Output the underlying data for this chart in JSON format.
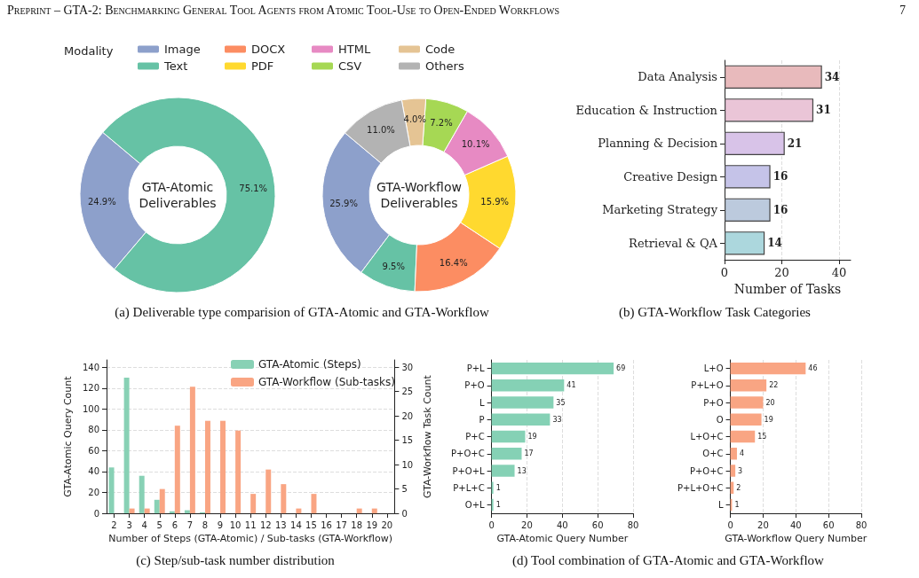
{
  "chart_data": [
    {
      "type": "donut",
      "categories": [
        "Image",
        "Text",
        "DOCX",
        "PDF",
        "HTML",
        "CSV",
        "Code",
        "Others"
      ],
      "colors": [
        "#8da0cb",
        "#66c2a5",
        "#fc8d62",
        "#ffd92f",
        "#e78ac3",
        "#a6d854",
        "#e5c494",
        "#b3b3b3"
      ],
      "series": [
        {
          "name": "GTA-Atomic\nDeliverables",
          "values": [
            24.9,
            75.1,
            null,
            null,
            null,
            null,
            null,
            null
          ],
          "value_labels": [
            "24.9%",
            "75.1%",
            null,
            null,
            null,
            null,
            null,
            null
          ]
        },
        {
          "name": "GTA-Workflow\nDeliverables",
          "values": [
            25.9,
            9.5,
            16.4,
            15.9,
            10.1,
            7.2,
            4.0,
            11.0
          ],
          "value_labels": [
            "25.9%",
            "9.5%",
            "16.4%",
            "15.9%",
            "10.1%",
            "7.2%",
            "4.0%",
            "11.0%"
          ]
        }
      ],
      "legend": "top",
      "legend_title": "Modality",
      "annotations": [
        "Preprint – GTA-2: Benchmarking General Tool Agents from Atomic Tool-Use to Open-Ended Workflows",
        "7",
        "(a) Deliverable type comparision of GTA-Atomic and GTA-Workflow"
      ]
    },
    {
      "type": "bar",
      "orientation": "horizontal",
      "categories": [
        "Data Analysis",
        "Education & Instruction",
        "Planning & Decision",
        "Creative Design",
        "Marketing Strategy",
        "Retrieval & QA"
      ],
      "values": [
        34,
        31,
        21,
        16,
        16,
        14
      ],
      "colors": [
        "#e8babc",
        "#eac5d7",
        "#d8c3e8",
        "#c5c3e8",
        "#bccadd",
        "#acd7dd"
      ],
      "data_labels": true,
      "xlabel": "Number of Tasks",
      "xlim": [
        0,
        44
      ],
      "xticks": [
        0,
        20,
        40
      ],
      "grid": "x",
      "annotations": [
        "(b) GTA-Workflow Task Categories"
      ]
    },
    {
      "type": "bar",
      "categories": [
        "2",
        "3",
        "4",
        "5",
        "6",
        "7",
        "8",
        "9",
        "10",
        "11",
        "12",
        "13",
        "14",
        "15",
        "16",
        "17",
        "18",
        "19",
        "20"
      ],
      "series": [
        {
          "name": "GTA-Atomic (Steps)",
          "color": "#88d1b5",
          "values": [
            44,
            130,
            36,
            13,
            2,
            3,
            1,
            null,
            null,
            null,
            null,
            null,
            null,
            null,
            null,
            null,
            null,
            null,
            null
          ]
        },
        {
          "name": "GTA-Workflow (Sub-tasks)",
          "color": "#f9a583",
          "axis": "y2",
          "values": [
            null,
            1,
            1,
            5,
            18,
            26,
            19,
            19,
            17,
            4,
            9,
            6,
            1,
            4,
            null,
            null,
            1,
            1,
            null
          ]
        }
      ],
      "xlabel": "Number of Steps (GTA-Atomic) / Sub-tasks (GTA-Workflow)",
      "ylabel": "GTA-Atomic Query Count",
      "y2label": "GTA-Workflow Task Count",
      "ylim": [
        0,
        147
      ],
      "yticks": [
        0,
        20,
        40,
        60,
        80,
        100,
        120,
        140
      ],
      "y2lim": [
        0,
        31.5
      ],
      "y2ticks": [
        0,
        5,
        10,
        15,
        20,
        25,
        30
      ],
      "grid": "y",
      "legend": "top right",
      "annotations": [
        "(c) Step/sub-task number distribution"
      ]
    },
    {
      "type": "bar",
      "orientation": "horizontal",
      "categories": [
        "P+L",
        "P+O",
        "L",
        "P",
        "P+C",
        "P+O+C",
        "P+O+L",
        "P+L+C",
        "O+L"
      ],
      "values": [
        69,
        41,
        35,
        33,
        19,
        17,
        13,
        1,
        1
      ],
      "color": "#85d1b5",
      "data_labels": true,
      "xlabel": "GTA-Atomic Query Number",
      "xlim": [
        0,
        80
      ],
      "xticks": [
        0,
        20,
        40,
        60,
        80
      ],
      "grid": "x",
      "annotations": [
        "(d) Tool combination of GTA-Atomic and GTA-Workflow"
      ]
    },
    {
      "type": "bar",
      "orientation": "horizontal",
      "categories": [
        "L+O",
        "P+L+O",
        "P+O",
        "O",
        "L+O+C",
        "O+C",
        "P+O+C",
        "P+L+O+C",
        "L"
      ],
      "values": [
        46,
        22,
        20,
        19,
        15,
        4,
        3,
        2,
        1
      ],
      "color": "#f9a583",
      "data_labels": true,
      "xlabel": "GTA-Workflow Query Number",
      "xlim": [
        0,
        80
      ],
      "xticks": [
        0,
        20,
        40,
        60,
        80
      ],
      "grid": "x"
    }
  ]
}
